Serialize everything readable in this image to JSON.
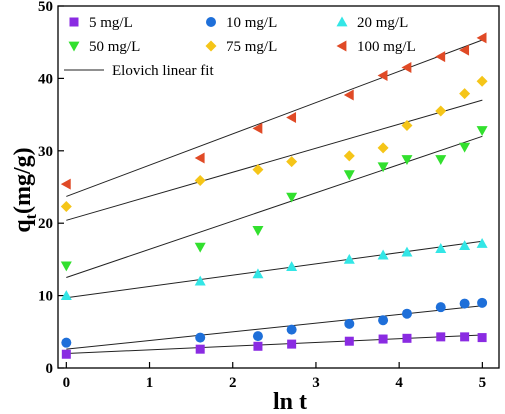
{
  "chart_data": {
    "type": "scatter",
    "xlabel": "ln t",
    "ylabel": {
      "main": "q",
      "sub": "t",
      "rest": "(mg/g)"
    },
    "xlim": [
      -0.1,
      5.2
    ],
    "ylim": [
      0,
      50
    ],
    "xticks": [
      0,
      1,
      2,
      3,
      4,
      5
    ],
    "yticks": [
      0,
      10,
      20,
      30,
      40,
      50
    ],
    "grid": false,
    "legend_position": "top-left",
    "x": [
      0,
      1.609,
      2.303,
      2.708,
      3.401,
      3.807,
      4.094,
      4.5,
      4.787,
      4.997
    ],
    "series": [
      {
        "name": "5 mg/L",
        "marker": "square",
        "color": "#8a2be2",
        "values": [
          1.9,
          2.6,
          3.0,
          3.3,
          3.7,
          4.0,
          4.1,
          4.3,
          4.3,
          4.2
        ],
        "fit": [
          2.0,
          4.55
        ]
      },
      {
        "name": "10 mg/L",
        "marker": "circle",
        "color": "#1e6fd9",
        "values": [
          3.5,
          4.2,
          4.4,
          5.3,
          6.1,
          6.6,
          7.5,
          8.4,
          8.9,
          9.0
        ],
        "fit": [
          2.6,
          8.6
        ]
      },
      {
        "name": "20 mg/L",
        "marker": "triangle-up",
        "color": "#33e6e6",
        "values": [
          10.0,
          12.0,
          13.0,
          14.0,
          15.0,
          15.6,
          16.0,
          16.5,
          16.9,
          17.2
        ],
        "fit": [
          9.7,
          17.5
        ]
      },
      {
        "name": "50 mg/L",
        "marker": "triangle-down",
        "color": "#32e02e",
        "values": [
          14.1,
          16.7,
          19.0,
          23.6,
          26.7,
          27.8,
          28.8,
          28.8,
          30.5,
          32.8
        ],
        "fit": [
          12.5,
          32.0
        ]
      },
      {
        "name": "75 mg/L",
        "marker": "diamond",
        "color": "#f5c518",
        "values": [
          22.3,
          25.9,
          27.4,
          28.5,
          29.3,
          30.4,
          33.5,
          35.5,
          37.9,
          39.6
        ],
        "fit": [
          20.4,
          37.0
        ]
      },
      {
        "name": "100 mg/L",
        "marker": "triangle-left",
        "color": "#e04a26",
        "values": [
          25.4,
          29.0,
          33.1,
          34.6,
          37.7,
          40.4,
          41.5,
          43.0,
          43.9,
          45.6
        ],
        "fit": [
          23.7,
          45.3
        ]
      }
    ],
    "fit_legend": "Elovich linear fit",
    "fit_color": "#222222"
  }
}
